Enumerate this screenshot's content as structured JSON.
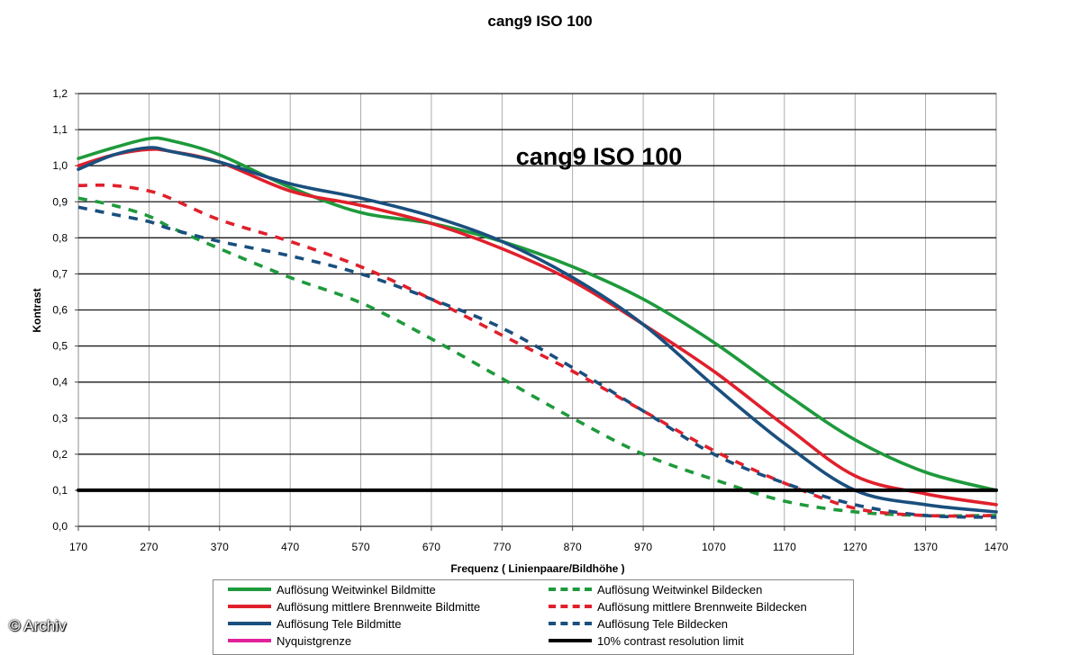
{
  "chart_data": {
    "type": "line",
    "title": "cang9 ISO 100",
    "inner_title": "cang9 ISO 100",
    "xlabel": "Frequenz ( Linienpaare/Bildhöhe )",
    "ylabel": "Kontrast",
    "xlim": [
      170,
      1470
    ],
    "ylim": [
      0,
      1.2
    ],
    "x_ticks": [
      "170",
      "270",
      "370",
      "470",
      "570",
      "670",
      "770",
      "870",
      "970",
      "1070",
      "1170",
      "1270",
      "1370",
      "1470"
    ],
    "y_ticks": [
      "0,0",
      "0,1",
      "0,2",
      "0,3",
      "0,4",
      "0,5",
      "0,6",
      "0,7",
      "0,8",
      "0,9",
      "1,0",
      "1,1",
      "1,2"
    ],
    "grid": "horizontal",
    "legend_position": "bottom",
    "series": [
      {
        "name": "Auflösung Weitwinkel Bildmitte",
        "color": "#1e9a3c",
        "style": "solid",
        "x": [
          170,
          220,
          270,
          300,
          370,
          470,
          570,
          670,
          770,
          870,
          970,
          1070,
          1170,
          1270,
          1370,
          1470
        ],
        "y": [
          1.02,
          1.05,
          1.075,
          1.07,
          1.03,
          0.94,
          0.87,
          0.84,
          0.79,
          0.72,
          0.63,
          0.51,
          0.37,
          0.24,
          0.15,
          0.1
        ]
      },
      {
        "name": "Auflösung mittlere Brennweite Bildmitte",
        "color": "#e0202c",
        "style": "solid",
        "x": [
          170,
          220,
          270,
          300,
          370,
          470,
          570,
          670,
          770,
          870,
          970,
          1070,
          1170,
          1270,
          1370,
          1470
        ],
        "y": [
          1.0,
          1.03,
          1.045,
          1.04,
          1.01,
          0.93,
          0.89,
          0.84,
          0.77,
          0.68,
          0.56,
          0.43,
          0.28,
          0.14,
          0.09,
          0.06
        ]
      },
      {
        "name": "Auflösung Tele Bildmitte",
        "color": "#1a4f7e",
        "style": "solid",
        "x": [
          170,
          220,
          270,
          300,
          370,
          470,
          570,
          670,
          770,
          870,
          970,
          1070,
          1170,
          1270,
          1370,
          1470
        ],
        "y": [
          0.99,
          1.03,
          1.05,
          1.04,
          1.01,
          0.95,
          0.91,
          0.86,
          0.79,
          0.69,
          0.56,
          0.39,
          0.23,
          0.1,
          0.06,
          0.04
        ]
      },
      {
        "name": "Auflösung Weitwinkel Bildecken",
        "color": "#1e9a3c",
        "style": "dashed",
        "x": [
          170,
          220,
          270,
          300,
          370,
          470,
          570,
          670,
          770,
          870,
          970,
          1070,
          1170,
          1270,
          1370,
          1470
        ],
        "y": [
          0.91,
          0.89,
          0.86,
          0.83,
          0.77,
          0.69,
          0.62,
          0.52,
          0.41,
          0.3,
          0.2,
          0.13,
          0.07,
          0.04,
          0.03,
          0.03
        ]
      },
      {
        "name": "Auflösung mittlere Brennweite Bildecken",
        "color": "#e0202c",
        "style": "dashed",
        "x": [
          170,
          220,
          270,
          300,
          370,
          470,
          570,
          670,
          770,
          870,
          970,
          1070,
          1170,
          1270,
          1370,
          1470
        ],
        "y": [
          0.945,
          0.945,
          0.93,
          0.91,
          0.85,
          0.79,
          0.72,
          0.63,
          0.53,
          0.43,
          0.32,
          0.21,
          0.12,
          0.05,
          0.03,
          0.03
        ]
      },
      {
        "name": "Auflösung Tele Bildecken",
        "color": "#1a4f7e",
        "style": "dashed",
        "x": [
          170,
          220,
          270,
          300,
          370,
          470,
          570,
          670,
          770,
          870,
          970,
          1070,
          1170,
          1270,
          1370,
          1470
        ],
        "y": [
          0.885,
          0.865,
          0.845,
          0.825,
          0.79,
          0.75,
          0.7,
          0.63,
          0.55,
          0.44,
          0.32,
          0.2,
          0.12,
          0.06,
          0.03,
          0.025
        ]
      },
      {
        "name": "Nyquistgrenze",
        "color": "#e0219a",
        "style": "solid",
        "x": [],
        "y": []
      },
      {
        "name": "10% contrast resolution limit",
        "color": "#000000",
        "style": "solid",
        "x": [
          170,
          1470
        ],
        "y": [
          0.1,
          0.1
        ]
      }
    ]
  },
  "watermark": "© Archiv"
}
